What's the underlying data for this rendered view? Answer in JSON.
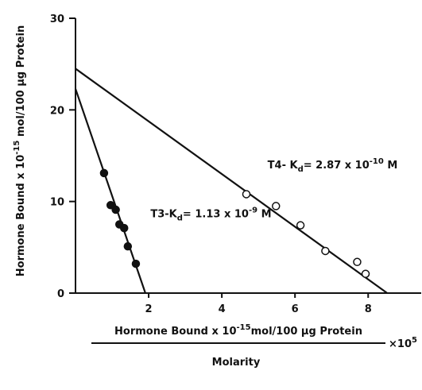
{
  "chart_data": {
    "type": "scatter",
    "xlim": [
      0,
      9.45
    ],
    "ylim": [
      0,
      30
    ],
    "xticks": [
      2,
      4,
      6,
      8
    ],
    "yticks": [
      0,
      10,
      20,
      30
    ],
    "color": "#111111",
    "y_label": {
      "parts": [
        {
          "text": "Hormone Bound x 10"
        },
        {
          "text": "-15",
          "shift": "sup"
        },
        {
          "text": " mol/100 µg Protein"
        }
      ]
    },
    "x_label": {
      "numerator": {
        "parts": [
          {
            "text": "Hormone Bound x 10"
          },
          {
            "text": "-15",
            "shift": "sup"
          },
          {
            "text": "mol/100 µg Protein"
          }
        ]
      },
      "denominator": "Molarity",
      "multiplier": {
        "parts": [
          {
            "text": "×10"
          },
          {
            "text": "5",
            "shift": "sup"
          }
        ]
      }
    },
    "series": [
      {
        "marker": "filled",
        "x": [
          0.78,
          0.96,
          1.1,
          1.2,
          1.33,
          1.43,
          1.65
        ],
        "values": [
          13.1,
          9.6,
          9.1,
          7.5,
          7.1,
          5.1,
          3.2
        ]
      },
      {
        "marker": "open",
        "x": [
          4.67,
          5.48,
          6.15,
          6.83,
          7.7,
          7.93
        ],
        "values": [
          10.8,
          9.5,
          7.4,
          4.6,
          3.4,
          2.1
        ]
      }
    ],
    "lines": [
      {
        "x": [
          0,
          1.91
        ],
        "values": [
          22.3,
          0
        ]
      },
      {
        "x": [
          0,
          8.52
        ],
        "values": [
          24.5,
          0
        ]
      }
    ],
    "annotations": [
      {
        "x": 2.05,
        "y": 8.3,
        "parts": [
          {
            "text": "T3-K"
          },
          {
            "text": "d",
            "shift": "sub"
          },
          {
            "text": "= 1.13 x 10"
          },
          {
            "text": "-9",
            "shift": "sup"
          },
          {
            "text": "  M"
          }
        ]
      },
      {
        "x": 5.25,
        "y": 13.6,
        "parts": [
          {
            "text": "T4- K"
          },
          {
            "text": "d",
            "shift": "sub"
          },
          {
            "text": "= 2.87 x 10"
          },
          {
            "text": "-10",
            "shift": "sup"
          },
          {
            "text": "  M"
          }
        ]
      }
    ]
  }
}
